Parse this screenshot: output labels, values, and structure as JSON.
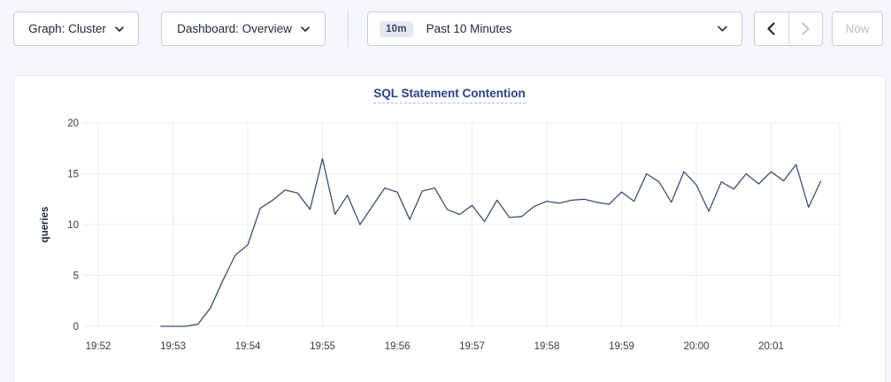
{
  "toolbar": {
    "graph_dropdown": {
      "label": "Graph: Cluster"
    },
    "dashboard_dropdown": {
      "label": "Dashboard: Overview"
    },
    "time_range": {
      "badge": "10m",
      "label": "Past 10 Minutes"
    },
    "back_button": {
      "enabled": true
    },
    "forward_button": {
      "enabled": false
    },
    "now_label": "Now",
    "icons": {
      "dropdown": "chevron-down-icon",
      "back": "chevron-left-icon",
      "forward": "chevron-right-icon"
    }
  },
  "chart_data": {
    "type": "line",
    "title": "SQL Statement Contention",
    "xlabel": "",
    "ylabel": "queries",
    "ylim": [
      0,
      20
    ],
    "y_ticks": [
      0,
      5,
      10,
      15,
      20
    ],
    "x_ticks": [
      {
        "t": 0,
        "label": "19:52"
      },
      {
        "t": 60,
        "label": "19:53"
      },
      {
        "t": 120,
        "label": "19:54"
      },
      {
        "t": 180,
        "label": "19:55"
      },
      {
        "t": 240,
        "label": "19:56"
      },
      {
        "t": 300,
        "label": "19:57"
      },
      {
        "t": 360,
        "label": "19:58"
      },
      {
        "t": 420,
        "label": "19:59"
      },
      {
        "t": 480,
        "label": "20:00"
      },
      {
        "t": 540,
        "label": "20:01"
      }
    ],
    "xlim_seconds": [
      -12,
      594
    ],
    "grid": true,
    "legend_position": "none",
    "series": [
      {
        "name": "queries",
        "points": [
          [
            50,
            0
          ],
          [
            60,
            0
          ],
          [
            70,
            0
          ],
          [
            80,
            0.2
          ],
          [
            90,
            1.8
          ],
          [
            100,
            4.5
          ],
          [
            110,
            7.0
          ],
          [
            120,
            8.0
          ],
          [
            130,
            11.6
          ],
          [
            140,
            12.4
          ],
          [
            150,
            13.4
          ],
          [
            160,
            13.1
          ],
          [
            170,
            11.5
          ],
          [
            180,
            16.5
          ],
          [
            190,
            11.0
          ],
          [
            200,
            12.9
          ],
          [
            210,
            10.0
          ],
          [
            220,
            11.8
          ],
          [
            230,
            13.6
          ],
          [
            240,
            13.2
          ],
          [
            250,
            10.5
          ],
          [
            260,
            13.3
          ],
          [
            270,
            13.6
          ],
          [
            280,
            11.5
          ],
          [
            290,
            11.0
          ],
          [
            300,
            11.9
          ],
          [
            310,
            10.3
          ],
          [
            320,
            12.4
          ],
          [
            330,
            10.7
          ],
          [
            340,
            10.8
          ],
          [
            350,
            11.8
          ],
          [
            360,
            12.3
          ],
          [
            370,
            12.1
          ],
          [
            380,
            12.4
          ],
          [
            390,
            12.5
          ],
          [
            400,
            12.2
          ],
          [
            410,
            12.0
          ],
          [
            420,
            13.2
          ],
          [
            430,
            12.3
          ],
          [
            440,
            15.0
          ],
          [
            450,
            14.2
          ],
          [
            460,
            12.2
          ],
          [
            470,
            15.2
          ],
          [
            480,
            13.9
          ],
          [
            490,
            11.3
          ],
          [
            500,
            14.2
          ],
          [
            510,
            13.5
          ],
          [
            520,
            15.0
          ],
          [
            530,
            14.0
          ],
          [
            540,
            15.2
          ],
          [
            550,
            14.3
          ],
          [
            560,
            15.9
          ],
          [
            570,
            11.7
          ],
          [
            580,
            14.3
          ]
        ]
      }
    ]
  },
  "colors": {
    "page_background": "#f5f6fa",
    "card_background": "#ffffff",
    "line": "#404e71",
    "grid": "#ececef",
    "title": "#2b4187",
    "tick_text": "#383c44",
    "control_text": "#242a35",
    "disabled": "#c3c8d2"
  }
}
